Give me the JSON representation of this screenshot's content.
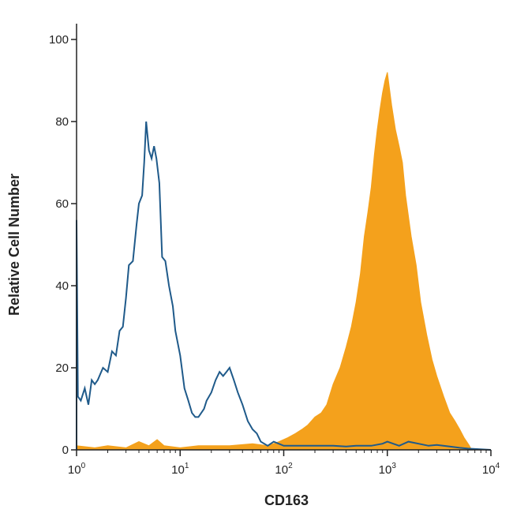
{
  "chart_data": {
    "type": "area",
    "title": "",
    "xlabel": "CD163",
    "ylabel": "Relative Cell Number",
    "x_scale": "log",
    "xlim": [
      1,
      10000
    ],
    "ylim": [
      0,
      100
    ],
    "x_ticks": [
      {
        "value": 1,
        "base": "10",
        "exp": "0"
      },
      {
        "value": 10,
        "base": "10",
        "exp": "1"
      },
      {
        "value": 100,
        "base": "10",
        "exp": "2"
      },
      {
        "value": 1000,
        "base": "10",
        "exp": "3"
      },
      {
        "value": 10000,
        "base": "10",
        "exp": "4"
      }
    ],
    "y_ticks": [
      0,
      20,
      40,
      60,
      80,
      100
    ],
    "grid": false,
    "legend": "none",
    "series": [
      {
        "style": "outline",
        "color": "#1f5a8a",
        "points": [
          [
            1.0,
            56
          ],
          [
            1.03,
            13
          ],
          [
            1.1,
            12
          ],
          [
            1.2,
            15
          ],
          [
            1.3,
            11
          ],
          [
            1.4,
            17
          ],
          [
            1.5,
            16
          ],
          [
            1.6,
            17
          ],
          [
            1.8,
            20
          ],
          [
            2.0,
            19
          ],
          [
            2.2,
            24
          ],
          [
            2.4,
            23
          ],
          [
            2.6,
            29
          ],
          [
            2.8,
            30
          ],
          [
            3.0,
            37
          ],
          [
            3.2,
            45
          ],
          [
            3.5,
            46
          ],
          [
            3.8,
            55
          ],
          [
            4.0,
            60
          ],
          [
            4.3,
            62
          ],
          [
            4.5,
            70
          ],
          [
            4.7,
            80
          ],
          [
            5.0,
            73
          ],
          [
            5.3,
            71
          ],
          [
            5.6,
            74
          ],
          [
            5.9,
            71
          ],
          [
            6.3,
            65
          ],
          [
            6.7,
            47
          ],
          [
            7.2,
            46
          ],
          [
            7.8,
            40
          ],
          [
            8.5,
            35
          ],
          [
            9.0,
            29
          ],
          [
            10.0,
            23
          ],
          [
            11.0,
            15
          ],
          [
            12.0,
            12
          ],
          [
            13.0,
            9
          ],
          [
            14.0,
            8
          ],
          [
            15.0,
            8
          ],
          [
            16.0,
            9
          ],
          [
            17.0,
            10
          ],
          [
            18.0,
            12
          ],
          [
            20.0,
            14
          ],
          [
            22.0,
            17
          ],
          [
            24.0,
            19
          ],
          [
            26.0,
            18
          ],
          [
            28.0,
            19
          ],
          [
            30.0,
            20
          ],
          [
            33.0,
            17
          ],
          [
            36.0,
            14
          ],
          [
            40.0,
            11
          ],
          [
            45.0,
            7
          ],
          [
            50.0,
            5
          ],
          [
            55.0,
            4
          ],
          [
            60.0,
            2
          ],
          [
            70.0,
            1
          ],
          [
            80.0,
            2
          ],
          [
            100.0,
            1
          ],
          [
            150.0,
            1
          ],
          [
            200.0,
            1
          ],
          [
            300.0,
            1
          ],
          [
            400.0,
            0.8
          ],
          [
            500.0,
            1
          ],
          [
            700.0,
            1
          ],
          [
            900.0,
            1.5
          ],
          [
            1000.0,
            2
          ],
          [
            1300.0,
            1
          ],
          [
            1600.0,
            2
          ],
          [
            2000.0,
            1.5
          ],
          [
            2500.0,
            1
          ],
          [
            3000.0,
            1.2
          ],
          [
            4000.0,
            0.8
          ],
          [
            5000.0,
            0.5
          ],
          [
            6000.0,
            0.3
          ],
          [
            10000.0,
            0
          ]
        ]
      },
      {
        "style": "filled",
        "color": "#f4a11c",
        "points": [
          [
            1.0,
            1
          ],
          [
            1.5,
            0.5
          ],
          [
            2.0,
            1
          ],
          [
            3.0,
            0.5
          ],
          [
            4.0,
            2
          ],
          [
            5.0,
            1
          ],
          [
            6.0,
            2.5
          ],
          [
            7.0,
            1
          ],
          [
            10.0,
            0.5
          ],
          [
            15.0,
            1
          ],
          [
            20.0,
            1
          ],
          [
            30.0,
            1
          ],
          [
            50.0,
            1.5
          ],
          [
            70.0,
            1
          ],
          [
            90.0,
            2
          ],
          [
            110.0,
            3
          ],
          [
            130.0,
            4
          ],
          [
            150.0,
            5
          ],
          [
            170.0,
            6
          ],
          [
            200.0,
            8
          ],
          [
            230.0,
            9
          ],
          [
            260.0,
            11
          ],
          [
            300.0,
            16
          ],
          [
            350.0,
            20
          ],
          [
            400.0,
            25
          ],
          [
            450.0,
            30
          ],
          [
            500.0,
            36
          ],
          [
            550.0,
            43
          ],
          [
            600.0,
            52
          ],
          [
            650.0,
            58
          ],
          [
            700.0,
            64
          ],
          [
            750.0,
            72
          ],
          [
            800.0,
            78
          ],
          [
            850.0,
            83
          ],
          [
            900.0,
            87
          ],
          [
            950.0,
            90
          ],
          [
            1000.0,
            92
          ],
          [
            1050.0,
            88
          ],
          [
            1100.0,
            84
          ],
          [
            1200.0,
            78
          ],
          [
            1300.0,
            74
          ],
          [
            1400.0,
            70
          ],
          [
            1500.0,
            62
          ],
          [
            1700.0,
            52
          ],
          [
            1900.0,
            45
          ],
          [
            2100.0,
            36
          ],
          [
            2400.0,
            28
          ],
          [
            2700.0,
            22
          ],
          [
            3000.0,
            18
          ],
          [
            3500.0,
            13
          ],
          [
            4000.0,
            9
          ],
          [
            4500.0,
            7
          ],
          [
            5000.0,
            5
          ],
          [
            5500.0,
            3
          ],
          [
            6200.0,
            1
          ],
          [
            6500.0,
            0
          ]
        ]
      }
    ]
  }
}
